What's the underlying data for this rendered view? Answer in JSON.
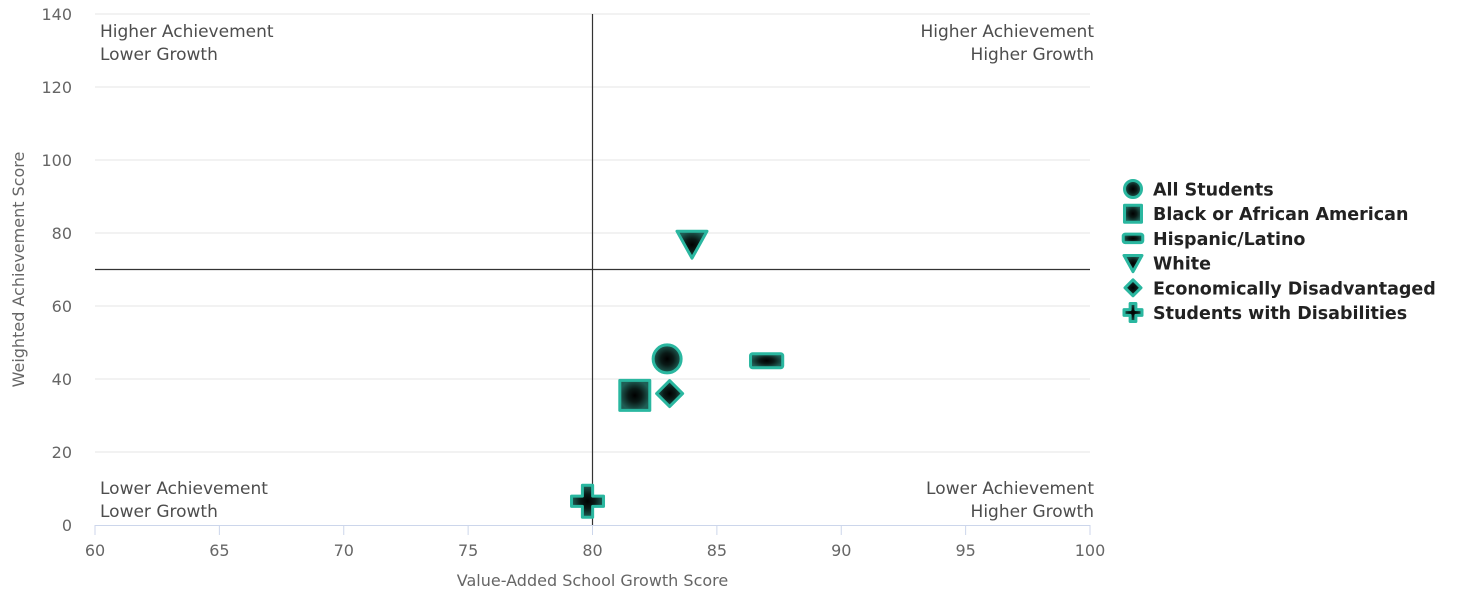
{
  "chart_data": {
    "type": "scatter",
    "xlabel": "Value-Added School Growth Score",
    "ylabel": "Weighted Achievement Score",
    "xlim": [
      60,
      100
    ],
    "ylim": [
      0,
      140
    ],
    "x_ticks": [
      "60",
      "65",
      "70",
      "75",
      "80",
      "85",
      "90",
      "95",
      "100"
    ],
    "y_ticks": [
      "0",
      "20",
      "40",
      "60",
      "80",
      "100",
      "120",
      "140"
    ],
    "grid": "horizontal",
    "legend_position": "right",
    "reference_lines": {
      "x": 80,
      "y": 70
    },
    "quadrant_labels": {
      "top_left": [
        "Higher Achievement",
        "Lower Growth"
      ],
      "top_right": [
        "Higher Achievement",
        "Higher Growth"
      ],
      "bottom_left": [
        "Lower Achievement",
        "Lower Growth"
      ],
      "bottom_right": [
        "Lower Achievement",
        "Higher Growth"
      ]
    },
    "colors": {
      "marker_fill_center": "#000000",
      "marker_fill_edge": "#1f5e55",
      "marker_stroke": "#2ab7a0",
      "reference_line": "#333333",
      "gridline": "#e6e6e6",
      "axis_line": "#ccd6eb"
    },
    "series": [
      {
        "name": "All Students",
        "symbol": "circle",
        "x": 83,
        "y": 45.5
      },
      {
        "name": "Black or African American",
        "symbol": "square",
        "x": 81.7,
        "y": 35.5
      },
      {
        "name": "Hispanic/Latino",
        "symbol": "bar",
        "x": 87,
        "y": 45
      },
      {
        "name": "White",
        "symbol": "triangle-down",
        "x": 84,
        "y": 77
      },
      {
        "name": "Economically Disadvantaged",
        "symbol": "diamond",
        "x": 83.1,
        "y": 36
      },
      {
        "name": "Students with Disabilities",
        "symbol": "cross",
        "x": 79.8,
        "y": 6.5
      }
    ]
  }
}
